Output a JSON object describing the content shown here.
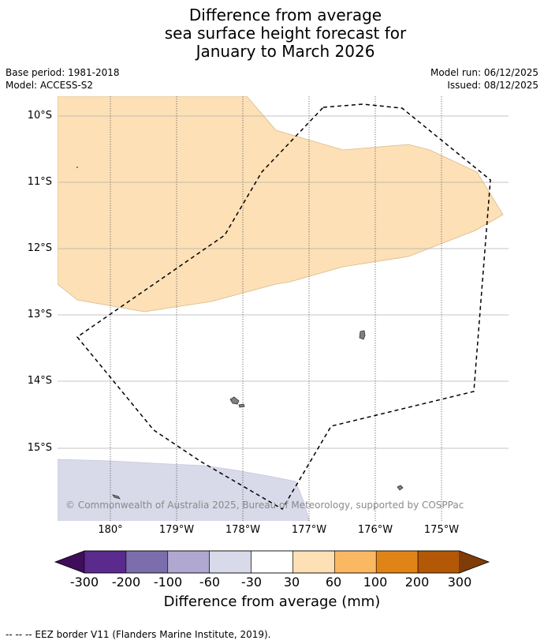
{
  "title": {
    "line1": "Difference from average",
    "line2": "sea surface height forecast for",
    "line3": "January to March 2026"
  },
  "meta": {
    "base_period": "Base period: 1981-2018",
    "model": "Model: ACCESS-S2",
    "model_run": "Model run: 06/12/2025",
    "issued": "Issued: 08/12/2025"
  },
  "map": {
    "lat_labels": [
      "10°S",
      "11°S",
      "12°S",
      "13°S",
      "14°S",
      "15°S"
    ],
    "lon_labels": [
      "180°",
      "179°W",
      "178°W",
      "177°W",
      "176°W",
      "175°W"
    ],
    "copyright": "© Commonwealth of Australia 2025, Bureau of Meteorology, supported by COSPPac",
    "colors": {
      "anomaly_30_60": "#fde0b6",
      "anomaly_neg60_neg30": "#d8d9e9",
      "land": "#808080",
      "eez_border": "#000000",
      "grid": "#b0b0b0"
    }
  },
  "colorbar": {
    "ticks": [
      "-300",
      "-200",
      "-100",
      "-60",
      "-30",
      "30",
      "60",
      "100",
      "200",
      "300"
    ],
    "colors": [
      "#3f0d5a",
      "#5a2a8c",
      "#7c6ead",
      "#b0a8d0",
      "#d8d9e9",
      "#ffffff",
      "#fde0b6",
      "#fbb862",
      "#e18417",
      "#b35806",
      "#7f3b08"
    ],
    "label": "Difference from average (mm)"
  },
  "footer": {
    "legend": "--  --  -- EEZ border V11 (Flanders Marine Institute, 2019)."
  }
}
